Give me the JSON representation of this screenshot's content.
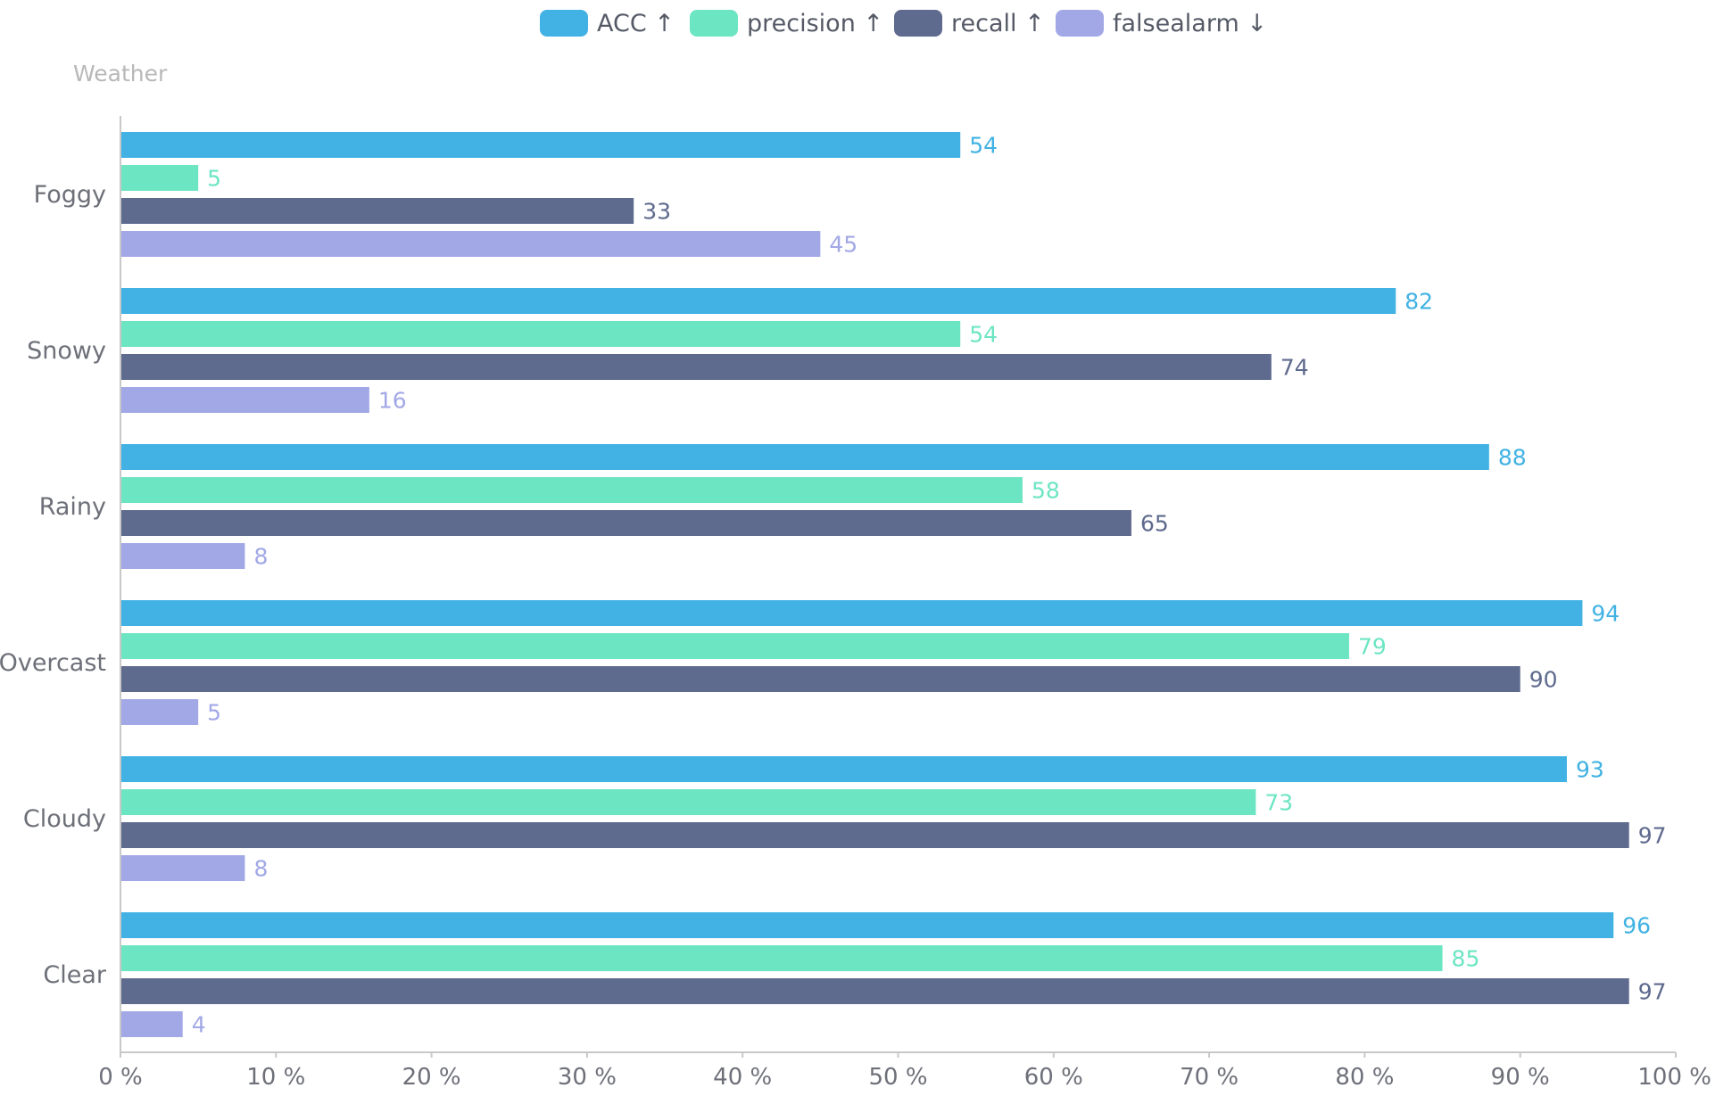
{
  "chart_data": {
    "type": "bar",
    "orientation": "horizontal",
    "title": "",
    "ylabel": "Weather",
    "xlabel": "",
    "xlim": [
      0,
      100
    ],
    "x_ticks": [
      "0 %",
      "10 %",
      "20 %",
      "30 %",
      "40 %",
      "50 %",
      "60 %",
      "70 %",
      "80 %",
      "90 %",
      "100 %"
    ],
    "grid": false,
    "legend_position": "top-center",
    "categories": [
      "Foggy",
      "Snowy",
      "Rainy",
      "Overcast",
      "Cloudy",
      "Clear"
    ],
    "series": [
      {
        "name": "ACC",
        "legend_label": "ACC ↑",
        "color": "#41b2e3",
        "values": [
          54,
          82,
          88,
          94,
          93,
          96
        ]
      },
      {
        "name": "precision",
        "legend_label": "precision ↑",
        "color": "#6ce5c3",
        "values": [
          5,
          54,
          58,
          79,
          73,
          85
        ]
      },
      {
        "name": "recall",
        "legend_label": "recall ↑",
        "color": "#5e6a8e",
        "values": [
          33,
          74,
          65,
          90,
          97,
          97
        ]
      },
      {
        "name": "falsealarm",
        "legend_label": "falsealarm ↓",
        "color": "#a2a8e6",
        "values": [
          45,
          16,
          8,
          5,
          8,
          4
        ]
      }
    ]
  }
}
